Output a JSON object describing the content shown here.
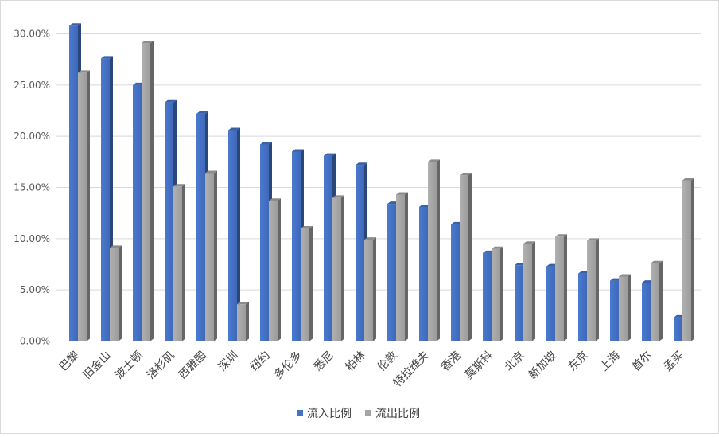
{
  "chart_data": {
    "type": "bar",
    "categories": [
      "巴黎",
      "旧金山",
      "波士顿",
      "洛杉矶",
      "西雅图",
      "深圳",
      "纽约",
      "多伦多",
      "悉尼",
      "柏林",
      "伦敦",
      "特拉维夫",
      "香港",
      "莫斯科",
      "北京",
      "新加坡",
      "东京",
      "上海",
      "首尔",
      "孟买"
    ],
    "series": [
      {
        "name": "流入比例",
        "color": "#4472C4",
        "values": [
          30.8,
          27.6,
          25.0,
          23.3,
          22.2,
          20.6,
          19.2,
          18.5,
          18.1,
          17.2,
          13.4,
          13.1,
          11.4,
          8.6,
          7.4,
          7.3,
          6.6,
          5.9,
          5.7,
          2.3
        ]
      },
      {
        "name": "流出比例",
        "color": "#A5A5A5",
        "values": [
          26.2,
          9.1,
          29.1,
          15.1,
          16.4,
          3.6,
          13.7,
          11.0,
          14.0,
          9.9,
          14.3,
          17.5,
          16.2,
          9.0,
          9.5,
          10.2,
          9.8,
          6.3,
          7.6,
          15.7
        ]
      }
    ],
    "y_ticks": [
      "0.00%",
      "5.00%",
      "10.00%",
      "15.00%",
      "20.00%",
      "25.00%",
      "30.00%"
    ],
    "ylim": [
      0,
      30
    ],
    "grid": true,
    "legend_position": "bottom",
    "title": "",
    "xlabel": "",
    "ylabel": ""
  }
}
